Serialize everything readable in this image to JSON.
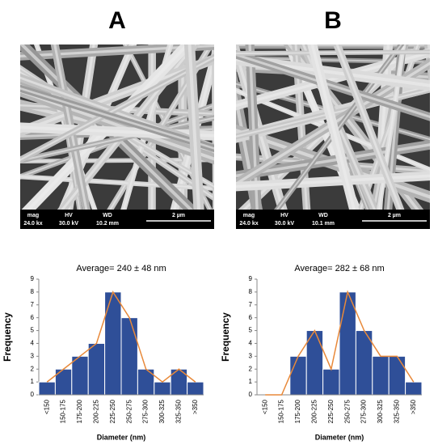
{
  "panels": [
    {
      "label": "A",
      "info": [
        {
          "label": "mag",
          "value": "24.0 kx"
        },
        {
          "label": "HV",
          "value": "30.0 kV"
        },
        {
          "label": "WD",
          "value": "10.2 mm"
        }
      ],
      "scale": "2 µm"
    },
    {
      "label": "B",
      "info": [
        {
          "label": "mag",
          "value": "24.0 kx"
        },
        {
          "label": "HV",
          "value": "30.0 kV"
        },
        {
          "label": "WD",
          "value": "10.1 mm"
        }
      ],
      "scale": "2 µm"
    }
  ],
  "chart_data": [
    {
      "type": "bar",
      "title": "Average= 240 ± 48 nm",
      "x_label": "Diameter (nm)",
      "y_label": "Frequency",
      "categories": [
        "<150",
        "150-175",
        "175-200",
        "200-225",
        "225-250",
        "250-275",
        "275-300",
        "300-325",
        "325-350",
        ">350"
      ],
      "values": [
        1,
        2,
        3,
        4,
        8,
        6,
        2,
        1,
        2,
        1
      ],
      "color": "#2f4f98",
      "line_overlay": true,
      "line_color": "#e8893a",
      "ylim": [
        0,
        9
      ],
      "yticks": [
        0,
        1,
        2,
        3,
        4,
        5,
        6,
        7,
        8,
        9
      ]
    },
    {
      "type": "bar",
      "title": "Average= 282 ± 68 nm",
      "x_label": "Diameter (nm)",
      "y_label": "Frequency",
      "categories": [
        "<150",
        "150-175",
        "175-200",
        "200-225",
        "225-250",
        "250-275",
        "275-300",
        "300-325",
        "325-350",
        ">350"
      ],
      "values": [
        0,
        0,
        3,
        5,
        2,
        8,
        5,
        3,
        3,
        1
      ],
      "color": "#2f4f98",
      "line_overlay": true,
      "line_color": "#e8893a",
      "ylim": [
        0,
        9
      ],
      "yticks": [
        0,
        1,
        2,
        3,
        4,
        5,
        6,
        7,
        8,
        9
      ]
    }
  ]
}
